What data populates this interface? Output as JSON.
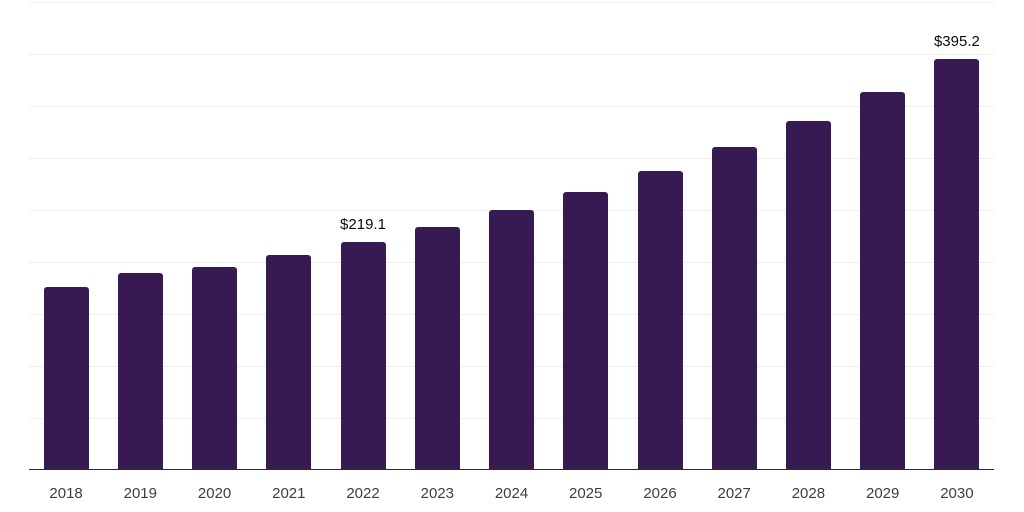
{
  "chart_data": {
    "type": "bar",
    "title": "",
    "xlabel": "",
    "ylabel": "",
    "categories": [
      "2018",
      "2019",
      "2020",
      "2021",
      "2022",
      "2023",
      "2024",
      "2025",
      "2026",
      "2027",
      "2028",
      "2029",
      "2030"
    ],
    "values": [
      175.6,
      189.2,
      195.3,
      206.1,
      219.1,
      233.3,
      250.0,
      266.9,
      287.1,
      310.2,
      335.2,
      363.7,
      395.2
    ],
    "data_labels": {
      "2022": "$219.1",
      "2030": "$395.2"
    },
    "ylim": [
      0,
      450
    ],
    "gridline_step": 50,
    "grid": true,
    "legend": false,
    "y_tick_labels_shown": false,
    "bar_color": "#381a52",
    "gridline_color": "#eeeeee",
    "axis_line_color": "#2b2b2b",
    "tick_label_color": "#3d3d3d",
    "data_label_color": "#0a0a0a"
  }
}
